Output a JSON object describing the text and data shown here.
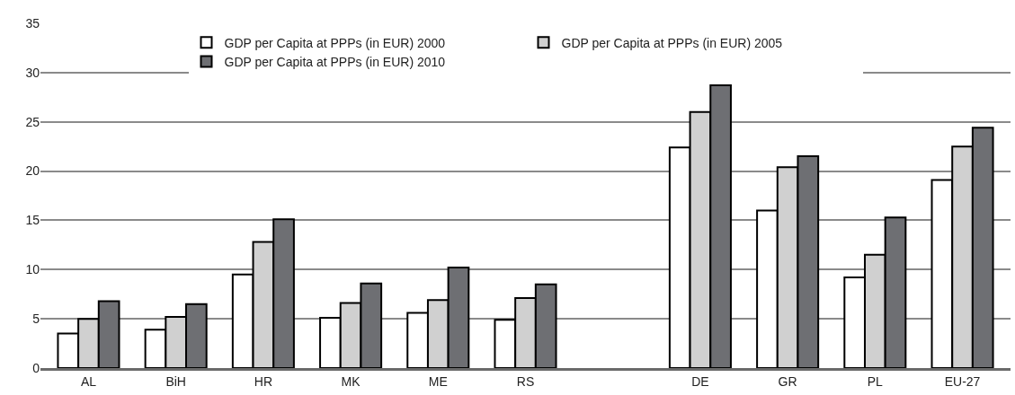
{
  "chart_data": {
    "type": "bar",
    "categories": [
      "AL",
      "BiH",
      "HR",
      "MK",
      "ME",
      "RS",
      null,
      "DE",
      "GR",
      "PL",
      "EU-27"
    ],
    "series": [
      {
        "name": "GDP per Capita at PPPs (in EUR) 2000",
        "color": "#ffffff",
        "values": [
          3.5,
          3.9,
          9.5,
          5.1,
          5.6,
          4.9,
          null,
          22.4,
          16.0,
          9.2,
          19.1
        ]
      },
      {
        "name": "GDP per Capita at PPPs (in EUR) 2005",
        "color": "#d0d0d0",
        "values": [
          5.0,
          5.2,
          12.8,
          6.6,
          6.9,
          7.1,
          null,
          26.0,
          20.4,
          11.5,
          22.5
        ]
      },
      {
        "name": "GDP per Capita at PPPs (in EUR) 2010",
        "color": "#6e6f73",
        "values": [
          6.8,
          6.5,
          15.1,
          8.6,
          10.2,
          8.5,
          null,
          28.7,
          21.5,
          15.3,
          24.4
        ]
      }
    ],
    "ylim": [
      0,
      35
    ],
    "yticks": [
      0,
      5,
      10,
      15,
      20,
      25,
      30,
      35
    ],
    "grid": "y",
    "legend": "top"
  }
}
